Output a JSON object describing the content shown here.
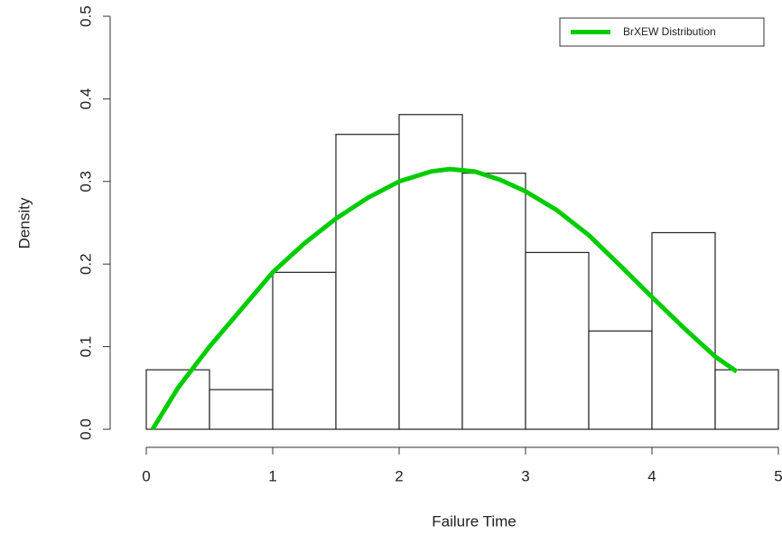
{
  "chart_data": {
    "type": "histogram",
    "xlabel": "Failure Time",
    "ylabel": "Density",
    "bins": [
      0,
      0.5,
      1,
      1.5,
      2,
      2.5,
      3,
      3.5,
      4,
      4.5,
      5
    ],
    "values": [
      0.072,
      0.048,
      0.19,
      0.357,
      0.381,
      0.31,
      0.214,
      0.119,
      0.238,
      0.072
    ],
    "color": "#ffffff",
    "curve": {
      "name": "BrXEW Distribution",
      "color": "#00cc00",
      "x": [
        0.05,
        0.25,
        0.5,
        0.75,
        1.0,
        1.25,
        1.5,
        1.75,
        2.0,
        2.25,
        2.4,
        2.6,
        2.8,
        3.0,
        3.25,
        3.5,
        3.75,
        4.0,
        4.25,
        4.5,
        4.67
      ],
      "values": [
        0.0,
        0.05,
        0.1,
        0.145,
        0.19,
        0.225,
        0.255,
        0.28,
        0.3,
        0.312,
        0.315,
        0.312,
        0.302,
        0.288,
        0.265,
        0.235,
        0.198,
        0.16,
        0.123,
        0.088,
        0.07
      ]
    },
    "xlim": [
      0,
      5
    ],
    "ylim": [
      0,
      0.5
    ],
    "xticks": [
      0,
      1,
      2,
      3,
      4,
      5
    ],
    "yticks": [
      {
        "value": 0,
        "label": "0.0"
      },
      0.1,
      0.2,
      0.3,
      0.4,
      0.5
    ],
    "legend": "top-right"
  }
}
